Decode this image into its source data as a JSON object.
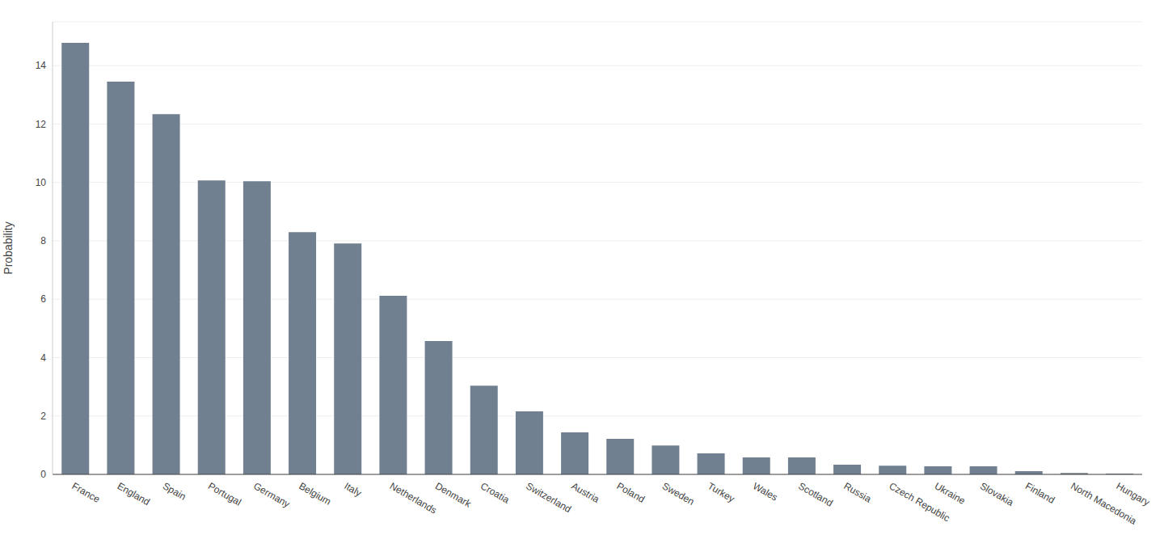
{
  "chart_data": {
    "type": "bar",
    "ylabel": "Probability",
    "categories": [
      "France",
      "England",
      "Spain",
      "Portugal",
      "Germany",
      "Belgium",
      "Italy",
      "Netherlands",
      "Denmark",
      "Croatia",
      "Switzerland",
      "Austria",
      "Poland",
      "Sweden",
      "Turkey",
      "Wales",
      "Scotland",
      "Russia",
      "Czech Republic",
      "Ukraine",
      "Slovakia",
      "Finland",
      "North Macedonia",
      "Hungary"
    ],
    "values": [
      14.78,
      13.45,
      12.34,
      10.07,
      10.04,
      8.3,
      7.91,
      6.12,
      4.57,
      3.04,
      2.16,
      1.44,
      1.22,
      0.99,
      0.72,
      0.58,
      0.58,
      0.33,
      0.3,
      0.28,
      0.28,
      0.11,
      0.05,
      0.03
    ],
    "color": "#708090",
    "ylim": [
      0,
      15.5
    ],
    "yticks": [
      0,
      2,
      4,
      6,
      8,
      10,
      12,
      14
    ],
    "grid": true
  }
}
